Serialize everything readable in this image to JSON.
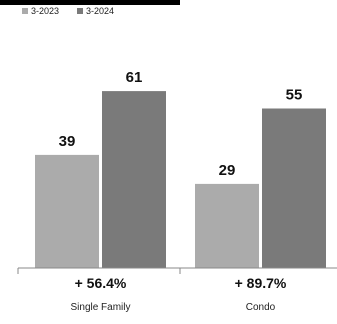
{
  "chart_data": {
    "type": "bar",
    "title": "",
    "xlabel": "",
    "ylabel": "",
    "categories": [
      "Single Family",
      "Condo"
    ],
    "series": [
      {
        "name": "3-2023",
        "values": [
          39,
          29
        ],
        "color": "#ababab"
      },
      {
        "name": "3-2024",
        "values": [
          61,
          55
        ],
        "color": "#7a7a7a"
      }
    ],
    "change_labels": [
      "+ 56.4%",
      "+ 89.7%"
    ],
    "ylim": [
      0,
      70
    ],
    "grid": false,
    "legend_position": "top-left"
  }
}
